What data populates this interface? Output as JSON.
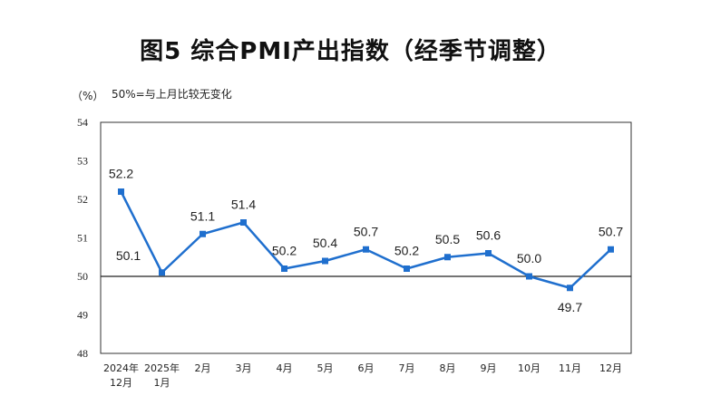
{
  "chart_data": {
    "type": "line",
    "title": "图5  综合PMI产出指数（经季节调整）",
    "yunit": "（%）",
    "note": "50%=与上月比较无变化",
    "ylim": [
      48,
      54
    ],
    "yticks": [
      "48",
      "49",
      "50",
      "51",
      "52",
      "53",
      "54"
    ],
    "baseline": 50,
    "categories": [
      [
        "2024年",
        "12月"
      ],
      [
        "2025年",
        "1月"
      ],
      [
        "2月"
      ],
      [
        "3月"
      ],
      [
        "4月"
      ],
      [
        "5月"
      ],
      [
        "6月"
      ],
      [
        "7月"
      ],
      [
        "8月"
      ],
      [
        "9月"
      ],
      [
        "10月"
      ],
      [
        "11月"
      ],
      [
        "12月"
      ]
    ],
    "series": [
      {
        "name": "综合PMI产出指数",
        "color": "#1f6fce",
        "values": [
          52.2,
          50.1,
          51.1,
          51.4,
          50.2,
          50.4,
          50.7,
          50.2,
          50.5,
          50.6,
          50.0,
          49.7,
          50.7
        ],
        "labels": [
          "52.2",
          "50.1",
          "51.1",
          "51.4",
          "50.2",
          "50.4",
          "50.7",
          "50.2",
          "50.5",
          "50.6",
          "50.0",
          "49.7",
          "50.7"
        ]
      }
    ]
  }
}
